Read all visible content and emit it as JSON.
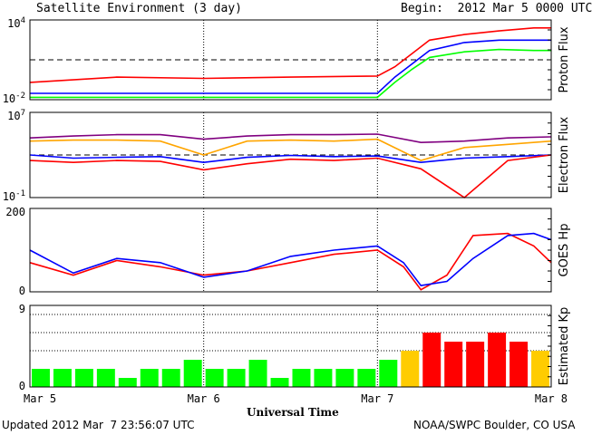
{
  "header": {
    "title": "Satellite Environment (3 day)",
    "begin": "Begin:  2012 Mar 5 0000 UTC"
  },
  "footer": {
    "updated": "Updated 2012 Mar  7 23:56:07 UTC",
    "credit": "NOAA/SWPC Boulder, CO USA"
  },
  "x_axis": {
    "label": "Universal Time",
    "ticks": [
      "Mar 5",
      "Mar 6",
      "Mar 7",
      "Mar 8"
    ]
  },
  "colors": {
    "red": "#ff0000",
    "blue": "#0000ff",
    "green": "#00ff00",
    "orange": "#ffa500",
    "purple": "#800080",
    "yellow": "#ffff00",
    "kp_green": "#00ff00",
    "kp_yellow": "#ffcc00",
    "kp_red": "#ff0000"
  },
  "chart_data": [
    {
      "type": "line",
      "ylabel": "Proton Flux",
      "yscale": "log",
      "ylim": [
        0.01,
        10000
      ],
      "ytick_labels": [
        "10^4",
        "10^-2"
      ],
      "threshold": 10,
      "x_days": [
        0,
        0.5,
        1.0,
        1.5,
        2.0,
        2.1,
        2.2,
        2.3,
        2.5,
        2.7,
        2.9,
        3.0
      ],
      "series": [
        {
          "color": "red",
          "values": [
            0.2,
            0.5,
            0.4,
            0.5,
            0.6,
            3,
            30,
            300,
            800,
            1500,
            2500,
            2500
          ]
        },
        {
          "color": "blue",
          "values": [
            0.03,
            0.03,
            0.03,
            0.03,
            0.03,
            0.5,
            5,
            50,
            200,
            300,
            300,
            300
          ]
        },
        {
          "color": "green",
          "values": [
            0.015,
            0.015,
            0.015,
            0.015,
            0.015,
            0.2,
            2,
            15,
            40,
            60,
            50,
            50
          ]
        }
      ]
    },
    {
      "type": "line",
      "ylabel": "Electron Flux",
      "yscale": "log",
      "ylim": [
        0.1,
        10000000
      ],
      "ytick_labels": [
        "10^7",
        "10^-1"
      ],
      "threshold": 1000,
      "x_days": [
        0,
        0.25,
        0.5,
        0.75,
        1.0,
        1.25,
        1.5,
        1.75,
        2.0,
        2.25,
        2.5,
        2.75,
        3.0
      ],
      "series": [
        {
          "color": "purple",
          "values": [
            40000,
            60000,
            80000,
            80000,
            30000,
            60000,
            80000,
            80000,
            90000,
            15000,
            20000,
            40000,
            50000
          ]
        },
        {
          "color": "orange",
          "values": [
            20000,
            25000,
            25000,
            20000,
            1000,
            20000,
            25000,
            20000,
            30000,
            300,
            5000,
            10000,
            20000
          ]
        },
        {
          "color": "blue",
          "values": [
            1000,
            500,
            600,
            700,
            200,
            600,
            900,
            700,
            800,
            200,
            500,
            700,
            1000
          ]
        },
        {
          "color": "red",
          "values": [
            300,
            200,
            300,
            250,
            40,
            150,
            400,
            300,
            500,
            50,
            0.1,
            300,
            1000
          ]
        }
      ]
    },
    {
      "type": "line",
      "ylabel": "GOES Hp",
      "ylim": [
        0,
        200
      ],
      "ytick_labels": [
        "200",
        "0"
      ],
      "x_days": [
        0,
        0.25,
        0.5,
        0.75,
        1.0,
        1.25,
        1.5,
        1.75,
        2.0,
        2.15,
        2.25,
        2.4,
        2.55,
        2.75,
        2.9,
        3.0
      ],
      "series": [
        {
          "color": "red",
          "values": [
            70,
            40,
            75,
            60,
            40,
            50,
            70,
            90,
            100,
            60,
            5,
            40,
            135,
            140,
            110,
            70
          ]
        },
        {
          "color": "blue",
          "values": [
            100,
            45,
            80,
            70,
            35,
            50,
            85,
            100,
            110,
            70,
            15,
            25,
            80,
            135,
            140,
            125
          ]
        }
      ]
    },
    {
      "type": "bar",
      "ylabel": "Estimated Kp",
      "ylim": [
        0,
        9
      ],
      "ytick_labels": [
        "9",
        "0"
      ],
      "values": [
        2,
        2,
        2,
        2,
        1,
        2,
        2,
        3,
        2,
        2,
        3,
        1,
        2,
        2,
        2,
        2,
        3,
        4,
        6,
        5,
        5,
        6,
        5,
        4
      ]
    }
  ]
}
